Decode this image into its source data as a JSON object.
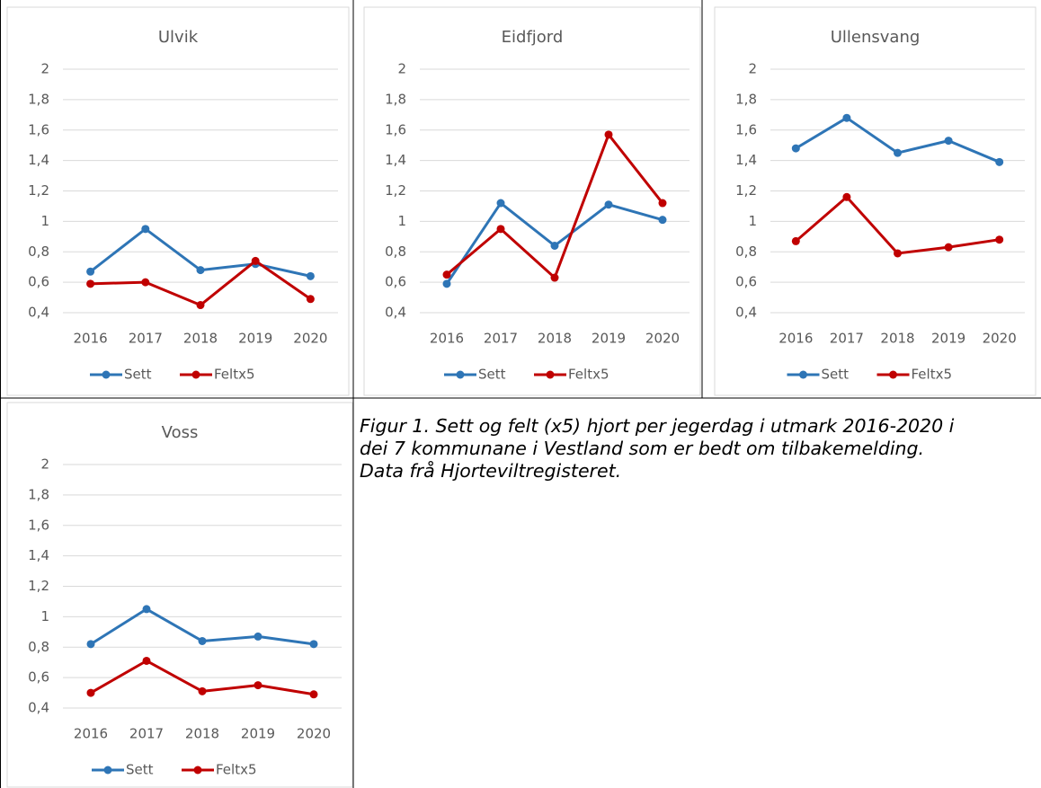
{
  "chart_data": [
    {
      "type": "line",
      "title": "Ulvik",
      "categories": [
        "2016",
        "2017",
        "2018",
        "2019",
        "2020"
      ],
      "series": [
        {
          "name": "Sett",
          "color": "#2e75b6",
          "values": [
            0.67,
            0.95,
            0.68,
            0.72,
            0.64
          ]
        },
        {
          "name": "Feltx5",
          "color": "#c00000",
          "values": [
            0.59,
            0.6,
            0.45,
            0.74,
            0.49
          ]
        }
      ],
      "ylim": [
        0.4,
        2
      ],
      "yticks": [
        {
          "value": 0.4,
          "label": "0,4"
        },
        {
          "value": 0.6,
          "label": "0,6"
        },
        {
          "value": 0.8,
          "label": "0,8"
        },
        1,
        {
          "value": 1.2,
          "label": "1,2"
        },
        {
          "value": 1.4,
          "label": "1,4"
        },
        {
          "value": 1.6,
          "label": "1,6"
        },
        {
          "value": 1.8,
          "label": "1,8"
        },
        2
      ],
      "grid": true,
      "legend": "bottom"
    },
    {
      "type": "line",
      "title": "Eidfjord",
      "categories": [
        "2016",
        "2017",
        "2018",
        "2019",
        "2020"
      ],
      "series": [
        {
          "name": "Sett",
          "color": "#2e75b6",
          "values": [
            0.59,
            1.12,
            0.84,
            1.11,
            1.01
          ]
        },
        {
          "name": "Feltx5",
          "color": "#c00000",
          "values": [
            0.65,
            0.95,
            0.63,
            1.57,
            1.12
          ]
        }
      ],
      "ylim": [
        0.4,
        2
      ],
      "yticks": [
        {
          "value": 0.4,
          "label": "0,4"
        },
        {
          "value": 0.6,
          "label": "0,6"
        },
        {
          "value": 0.8,
          "label": "0,8"
        },
        1,
        {
          "value": 1.2,
          "label": "1,2"
        },
        {
          "value": 1.4,
          "label": "1,4"
        },
        {
          "value": 1.6,
          "label": "1,6"
        },
        {
          "value": 1.8,
          "label": "1,8"
        },
        2
      ],
      "grid": true,
      "legend": "bottom"
    },
    {
      "type": "line",
      "title": "Ullensvang",
      "categories": [
        "2016",
        "2017",
        "2018",
        "2019",
        "2020"
      ],
      "series": [
        {
          "name": "Sett",
          "color": "#2e75b6",
          "values": [
            1.48,
            1.68,
            1.45,
            1.53,
            1.39
          ]
        },
        {
          "name": "Feltx5",
          "color": "#c00000",
          "values": [
            0.87,
            1.16,
            0.79,
            0.83,
            0.88
          ]
        }
      ],
      "ylim": [
        0.4,
        2
      ],
      "yticks": [
        {
          "value": 0.4,
          "label": "0,4"
        },
        {
          "value": 0.6,
          "label": "0,6"
        },
        {
          "value": 0.8,
          "label": "0,8"
        },
        1,
        {
          "value": 1.2,
          "label": "1,2"
        },
        {
          "value": 1.4,
          "label": "1,4"
        },
        {
          "value": 1.6,
          "label": "1,6"
        },
        {
          "value": 1.8,
          "label": "1,8"
        },
        2
      ],
      "grid": true,
      "legend": "bottom"
    },
    {
      "type": "line",
      "title": "Voss",
      "categories": [
        "2016",
        "2017",
        "2018",
        "2019",
        "2020"
      ],
      "series": [
        {
          "name": "Sett",
          "color": "#2e75b6",
          "values": [
            0.82,
            1.05,
            0.84,
            0.87,
            0.82
          ]
        },
        {
          "name": "Feltx5",
          "color": "#c00000",
          "values": [
            0.5,
            0.71,
            0.51,
            0.55,
            0.49
          ]
        }
      ],
      "ylim": [
        0.4,
        2
      ],
      "yticks": [
        {
          "value": 0.4,
          "label": "0,4"
        },
        {
          "value": 0.6,
          "label": "0,6"
        },
        {
          "value": 0.8,
          "label": "0,8"
        },
        1,
        {
          "value": 1.2,
          "label": "1,2"
        },
        {
          "value": 1.4,
          "label": "1,4"
        },
        {
          "value": 1.6,
          "label": "1,6"
        },
        {
          "value": 1.8,
          "label": "1,8"
        },
        2
      ],
      "grid": true,
      "legend": "bottom"
    }
  ],
  "caption": [
    "Figur 1. Sett og felt (x5) hjort per jegerdag i utmark 2016-2020 i",
    "dei 7 kommunane i Vestland som er bedt om tilbakemelding.",
    "Data frå Hjorteviltregisteret."
  ]
}
